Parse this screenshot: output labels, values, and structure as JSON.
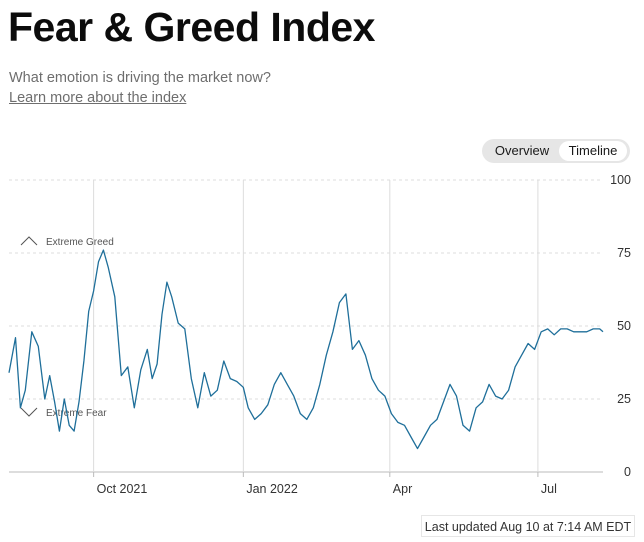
{
  "header": {
    "title": "Fear & Greed Index",
    "subtitle": "What emotion is driving the market now?",
    "learn_more": "Learn more about the index"
  },
  "toggle": {
    "overview": "Overview",
    "timeline": "Timeline",
    "selected": "Timeline"
  },
  "footer": {
    "last_updated": "Last updated Aug 10 at 7:14 AM EDT"
  },
  "colors": {
    "line": "#1f6f9a",
    "grid": "#dcdcdc",
    "axis_text": "#333333",
    "zone_text": "#555555"
  },
  "chart_data": {
    "type": "line",
    "title": "",
    "xlabel": "",
    "ylabel": "",
    "ylim": [
      0,
      100
    ],
    "y_ticks": [
      0,
      25,
      50,
      75,
      100
    ],
    "x_ticks": [
      {
        "label": "Oct 2021",
        "date": "2021-10-01"
      },
      {
        "label": "Jan 2022",
        "date": "2022-01-01"
      },
      {
        "label": "Apr",
        "date": "2022-04-01"
      },
      {
        "label": "Jul",
        "date": "2022-07-01"
      }
    ],
    "x_range": [
      "2021-08-10",
      "2022-08-10"
    ],
    "grid": true,
    "annotations": [
      {
        "text": "Extreme Greed",
        "y": 75,
        "zone": "upper"
      },
      {
        "text": "Extreme Fear",
        "y": 25,
        "zone": "lower"
      }
    ],
    "series": [
      {
        "x": [
          "2021-08-10",
          "2021-08-14",
          "2021-08-17",
          "2021-08-20",
          "2021-08-24",
          "2021-08-28",
          "2021-09-01",
          "2021-09-04",
          "2021-09-07",
          "2021-09-10",
          "2021-09-13",
          "2021-09-16",
          "2021-09-19",
          "2021-09-22",
          "2021-09-25",
          "2021-09-28",
          "2021-10-01",
          "2021-10-04",
          "2021-10-07",
          "2021-10-10",
          "2021-10-14",
          "2021-10-18",
          "2021-10-22",
          "2021-10-26",
          "2021-10-30",
          "2021-11-03",
          "2021-11-06",
          "2021-11-09",
          "2021-11-12",
          "2021-11-15",
          "2021-11-18",
          "2021-11-22",
          "2021-11-26",
          "2021-11-30",
          "2021-12-04",
          "2021-12-08",
          "2021-12-12",
          "2021-12-16",
          "2021-12-20",
          "2021-12-24",
          "2021-12-28",
          "2022-01-01",
          "2022-01-04",
          "2022-01-08",
          "2022-01-12",
          "2022-01-16",
          "2022-01-20",
          "2022-01-24",
          "2022-01-28",
          "2022-02-01",
          "2022-02-05",
          "2022-02-09",
          "2022-02-13",
          "2022-02-17",
          "2022-02-21",
          "2022-02-25",
          "2022-03-01",
          "2022-03-05",
          "2022-03-09",
          "2022-03-13",
          "2022-03-17",
          "2022-03-21",
          "2022-03-25",
          "2022-03-29",
          "2022-04-02",
          "2022-04-06",
          "2022-04-10",
          "2022-04-14",
          "2022-04-18",
          "2022-04-22",
          "2022-04-26",
          "2022-04-30",
          "2022-05-04",
          "2022-05-08",
          "2022-05-12",
          "2022-05-16",
          "2022-05-20",
          "2022-05-24",
          "2022-05-28",
          "2022-06-01",
          "2022-06-05",
          "2022-06-09",
          "2022-06-13",
          "2022-06-17",
          "2022-06-21",
          "2022-06-25",
          "2022-06-29",
          "2022-07-03",
          "2022-07-07",
          "2022-07-11",
          "2022-07-15",
          "2022-07-19",
          "2022-07-23",
          "2022-07-27",
          "2022-07-31",
          "2022-08-04",
          "2022-08-08",
          "2022-08-10"
        ],
        "y": [
          34,
          46,
          22,
          28,
          48,
          43,
          25,
          33,
          24,
          14,
          25,
          16,
          14,
          24,
          38,
          55,
          62,
          72,
          76,
          70,
          60,
          33,
          36,
          22,
          35,
          42,
          32,
          37,
          54,
          65,
          60,
          51,
          49,
          32,
          22,
          34,
          26,
          28,
          38,
          32,
          31,
          29,
          22,
          18,
          20,
          23,
          30,
          34,
          30,
          26,
          20,
          18,
          22,
          30,
          40,
          48,
          58,
          61,
          42,
          45,
          40,
          32,
          28,
          26,
          20,
          17,
          16,
          12,
          8,
          12,
          16,
          18,
          24,
          30,
          26,
          16,
          14,
          22,
          24,
          30,
          26,
          25,
          28,
          36,
          40,
          44,
          42,
          48,
          49,
          47,
          49,
          49,
          48,
          48,
          48,
          49,
          49,
          48
        ]
      }
    ]
  }
}
